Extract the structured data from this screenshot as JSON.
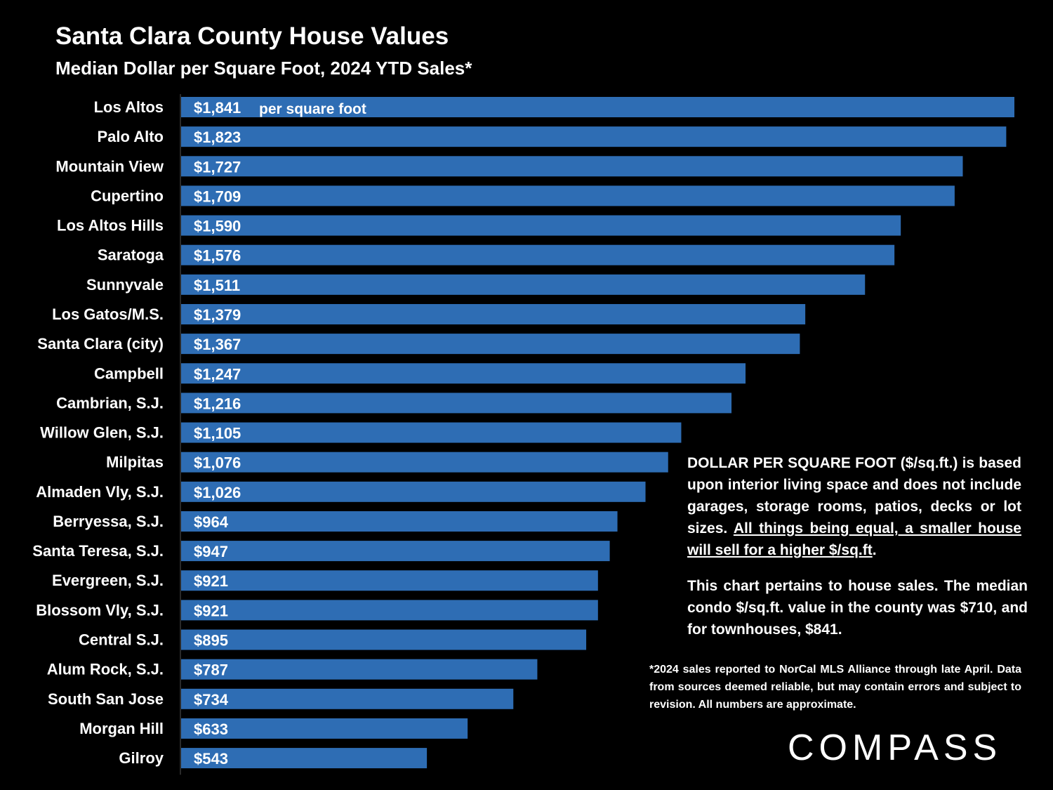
{
  "header": {
    "title": "Santa Clara County House Values",
    "subtitle": "Median Dollar per Square Foot, 2024 YTD Sales*"
  },
  "chart_data": {
    "type": "bar",
    "orientation": "horizontal",
    "title": "Santa Clara County House Values",
    "subtitle": "Median Dollar per Square Foot, 2024 YTD Sales*",
    "unit_annotation": "per square foot",
    "bar_color": "#2e6db4",
    "categories": [
      "Los Altos",
      "Palo Alto",
      "Mountain View",
      "Cupertino",
      "Los Altos Hills",
      "Saratoga",
      "Sunnyvale",
      "Los Gatos/M.S.",
      "Santa Clara (city)",
      "Campbell",
      "Cambrian, S.J.",
      "Willow Glen, S.J.",
      "Milpitas",
      "Almaden Vly, S.J.",
      "Berryessa, S.J.",
      "Santa Teresa, S.J.",
      "Evergreen, S.J.",
      "Blossom Vly, S.J.",
      "Central S.J.",
      "Alum Rock, S.J.",
      "South San Jose",
      "Morgan Hill",
      "Gilroy"
    ],
    "values": [
      1841,
      1823,
      1727,
      1709,
      1590,
      1576,
      1511,
      1379,
      1367,
      1247,
      1216,
      1105,
      1076,
      1026,
      964,
      947,
      921,
      921,
      895,
      787,
      734,
      633,
      543
    ],
    "labels": [
      "$1,841",
      "$1,823",
      "$1,727",
      "$1,709",
      "$1,590",
      "$1,576",
      "$1,511",
      "$1,379",
      "$1,367",
      "$1,247",
      "$1,216",
      "$1,105",
      "$1,076",
      "$1,026",
      "$964",
      "$947",
      "$921",
      "$921",
      "$895",
      "$787",
      "$734",
      "$633",
      "$543"
    ],
    "xlim": [
      0,
      1841
    ]
  },
  "notes": {
    "para1_text": "DOLLAR PER SQUARE FOOT ($/sq.ft.) is based upon interior living space and does not include garages, storage rooms, patios, decks or lot sizes. ",
    "para1_underlined": "All things being equal, a smaller house will sell for a higher $/sq.ft",
    "para1_end": ".",
    "para2": "This chart pertains to house sales. The median condo $/sq.ft. value in the county was $710, and for townhouses, $841.",
    "footnote": "*2024 sales reported to NorCal MLS Alliance through late April. Data from sources deemed reliable, but may contain errors and subject to revision. All numbers are approximate."
  },
  "brand": {
    "logo_text": "COMPASS"
  }
}
